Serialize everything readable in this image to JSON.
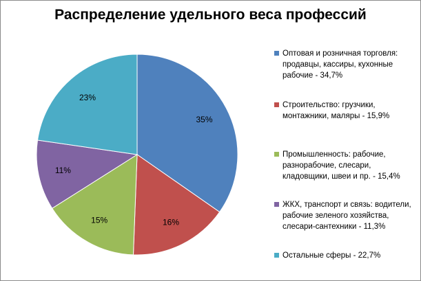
{
  "chart_data": {
    "type": "pie",
    "title": "Распределение удельного веса профессий",
    "slices": [
      {
        "label": "Оптовая и розничная торговля: продавцы, кассиры, кухонные рабочие - 34,7%",
        "value": 34.7,
        "display": "35%",
        "color": "#4F81BD"
      },
      {
        "label": "Строительство: грузчики, монтажники, маляры - 15,9%",
        "value": 15.9,
        "display": "16%",
        "color": "#C0504D"
      },
      {
        "label": "Промышленность: рабочие, разнорабочие, слесари, кладовщики, швеи и пр. - 15,4%",
        "value": 15.4,
        "display": "15%",
        "color": "#9BBB59"
      },
      {
        "label": "ЖКХ, транспорт и связь: водители, рабочие зеленого хозяйства, слесари-сантехники - 11,3%",
        "value": 11.3,
        "display": "11%",
        "color": "#8064A2"
      },
      {
        "label": "Остальные сферы - 22,7%",
        "value": 22.7,
        "display": "23%",
        "color": "#4BACC6"
      }
    ],
    "legend_position": "right"
  }
}
